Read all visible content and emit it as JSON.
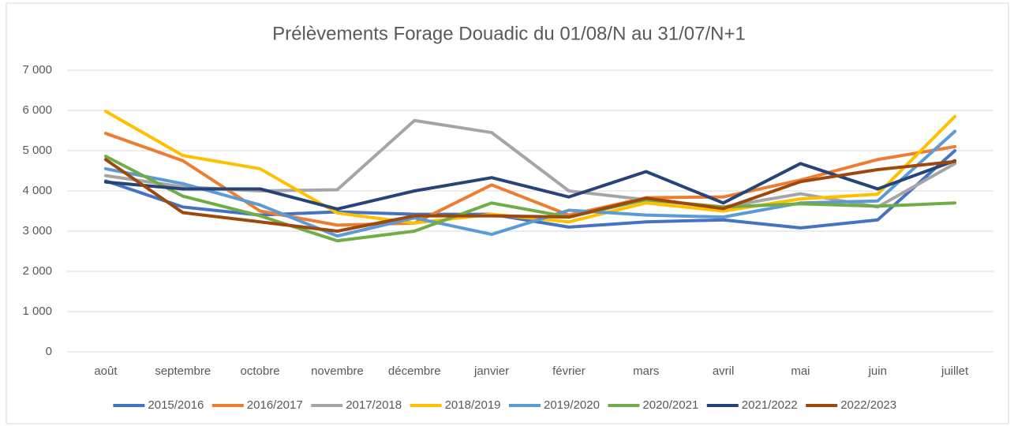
{
  "chart_data": {
    "type": "line",
    "title": "Prélèvements Forage Douadic du 01/08/N au 31/07/N+1",
    "categories": [
      "août",
      "septembre",
      "octobre",
      "novembre",
      "décembre",
      "janvier",
      "février",
      "mars",
      "avril",
      "mai",
      "juin",
      "juillet"
    ],
    "series": [
      {
        "name": "2015/2016",
        "color": "#4472c4",
        "values": [
          4250,
          3600,
          3400,
          3480,
          3420,
          3420,
          3100,
          3230,
          3280,
          3080,
          3280,
          5000
        ]
      },
      {
        "name": "2016/2017",
        "color": "#ed7d31",
        "values": [
          5430,
          4750,
          3500,
          3150,
          3200,
          4150,
          3400,
          3830,
          3850,
          4270,
          4780,
          5100
        ]
      },
      {
        "name": "2017/2018",
        "color": "#a5a5a5",
        "values": [
          4380,
          4100,
          4000,
          4030,
          5750,
          5450,
          4000,
          3780,
          3600,
          3930,
          3600,
          4680
        ]
      },
      {
        "name": "2018/2019",
        "color": "#ffc000",
        "values": [
          5980,
          4880,
          4550,
          3450,
          3200,
          3420,
          3230,
          3700,
          3500,
          3800,
          3920,
          5850
        ]
      },
      {
        "name": "2019/2020",
        "color": "#5b9bd5",
        "values": [
          4550,
          4180,
          3650,
          2880,
          3330,
          2920,
          3520,
          3400,
          3350,
          3700,
          3750,
          5480
        ]
      },
      {
        "name": "2020/2021",
        "color": "#70ad47",
        "values": [
          4860,
          3870,
          3380,
          2760,
          3000,
          3700,
          3350,
          3780,
          3600,
          3680,
          3620,
          3700
        ]
      },
      {
        "name": "2021/2022",
        "color": "#264478",
        "values": [
          4220,
          4050,
          4050,
          3550,
          4000,
          4330,
          3850,
          4480,
          3700,
          4680,
          4050,
          4750
        ]
      },
      {
        "name": "2022/2023",
        "color": "#9e480e",
        "values": [
          4780,
          3460,
          3230,
          3000,
          3380,
          3380,
          3350,
          3820,
          3560,
          4230,
          4530,
          4730
        ]
      }
    ],
    "ylim": [
      0,
      7000
    ],
    "yticks": [
      0,
      {
        "value": 1000,
        "label": "1 000"
      },
      {
        "value": 2000,
        "label": "2 000"
      },
      {
        "value": 3000,
        "label": "3 000"
      },
      {
        "value": 4000,
        "label": "4 000"
      },
      {
        "value": 5000,
        "label": "5 000"
      },
      {
        "value": 6000,
        "label": "6 000"
      },
      {
        "value": 7000,
        "label": "7 000"
      }
    ],
    "grid": true,
    "legend": "bottom"
  }
}
